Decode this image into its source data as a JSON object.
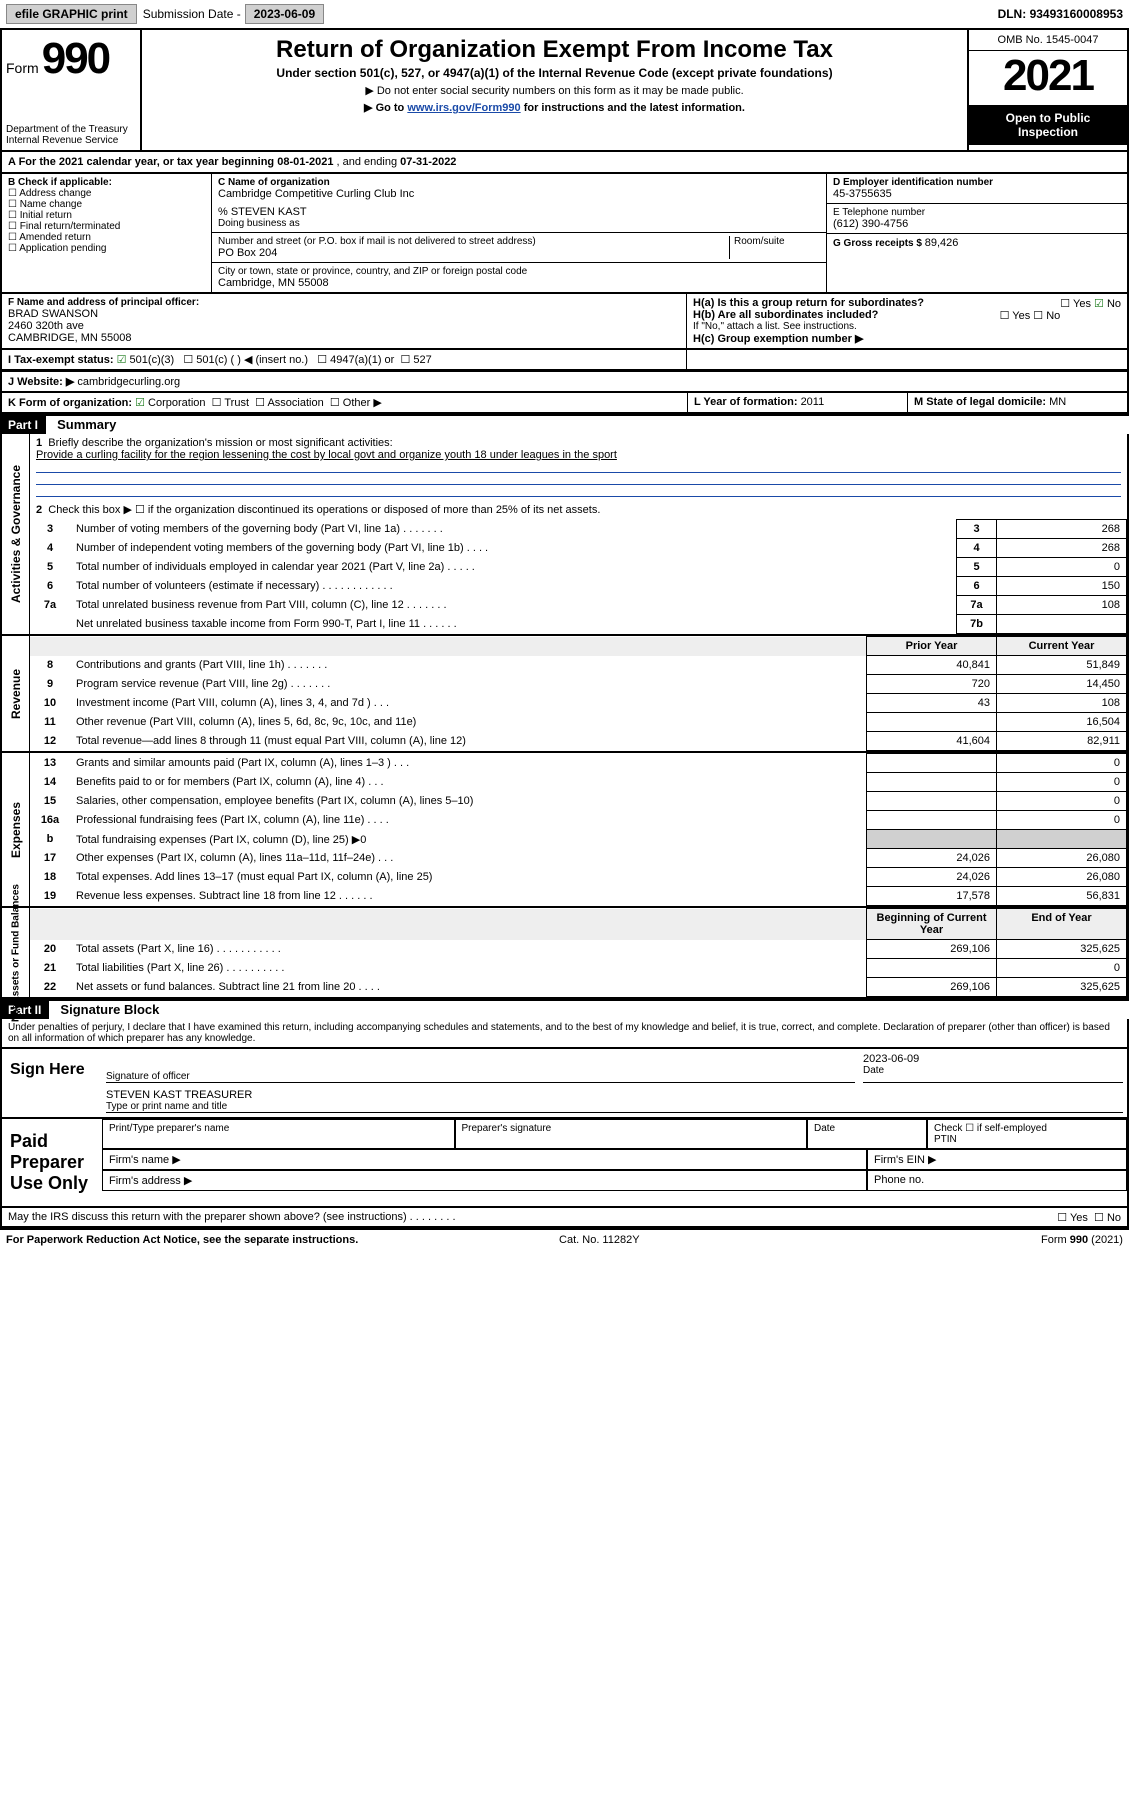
{
  "topbar": {
    "efile": "efile GRAPHIC print",
    "subdate_label": "Submission Date - ",
    "subdate": "2023-06-09",
    "dln_label": "DLN: ",
    "dln": "93493160008953"
  },
  "header": {
    "form_word": "Form",
    "form_num": "990",
    "title": "Return of Organization Exempt From Income Tax",
    "subtitle": "Under section 501(c), 527, or 4947(a)(1) of the Internal Revenue Code (except private foundations)",
    "note1": "▶ Do not enter social security numbers on this form as it may be made public.",
    "note2_pre": "▶ Go to ",
    "note2_link": "www.irs.gov/Form990",
    "note2_post": " for instructions and the latest information.",
    "dept": "Department of the Treasury",
    "irs": "Internal Revenue Service",
    "omb": "OMB No. 1545-0047",
    "year": "2021",
    "inspect1": "Open to Public",
    "inspect2": "Inspection"
  },
  "A": {
    "label": "A For the 2021 calendar year, or tax year beginning ",
    "begin": "08-01-2021",
    "mid": " , and ending ",
    "end": "07-31-2022"
  },
  "B": {
    "label": "B Check if applicable:",
    "opts": [
      "Address change",
      "Name change",
      "Initial return",
      "Final return/terminated",
      "Amended return",
      "Application pending"
    ]
  },
  "C": {
    "label": "C Name of organization",
    "name": "Cambridge Competitive Curling Club Inc",
    "care": "% STEVEN KAST",
    "dba_label": "Doing business as",
    "addr_label": "Number and street (or P.O. box if mail is not delivered to street address)",
    "room_label": "Room/suite",
    "addr": "PO Box 204",
    "city_label": "City or town, state or province, country, and ZIP or foreign postal code",
    "city": "Cambridge, MN  55008"
  },
  "D": {
    "label": "D Employer identification number",
    "ein": "45-3755635"
  },
  "E": {
    "label": "E Telephone number",
    "phone": "(612) 390-4756"
  },
  "G": {
    "label": "G Gross receipts $ ",
    "val": "89,426"
  },
  "F": {
    "label": "F Name and address of principal officer:",
    "name": "BRAD SWANSON",
    "addr1": "2460 320th ave",
    "addr2": "CAMBRIDGE, MN  55008"
  },
  "H": {
    "a": "H(a)  Is this a group return for subordinates?",
    "a_yes": "Yes",
    "a_no": "No",
    "b": "H(b)  Are all subordinates included?",
    "b_yes": "Yes",
    "b_no": "No",
    "note": "If \"No,\" attach a list. See instructions.",
    "c": "H(c)  Group exemption number ▶"
  },
  "I": {
    "label": "I    Tax-exempt status:",
    "o1": "501(c)(3)",
    "o2": "501(c) (   ) ◀ (insert no.)",
    "o3": "4947(a)(1) or",
    "o4": "527"
  },
  "J": {
    "label": "J    Website: ▶ ",
    "val": "cambridgecurling.org"
  },
  "K": {
    "label": "K Form of organization:",
    "o1": "Corporation",
    "o2": "Trust",
    "o3": "Association",
    "o4": "Other ▶"
  },
  "L": {
    "label": "L Year of formation: ",
    "val": "2011"
  },
  "M": {
    "label": "M State of legal domicile: ",
    "val": "MN"
  },
  "part1": {
    "hdr": "Part I",
    "title": "Summary",
    "q1": "Briefly describe the organization's mission or most significant activities:",
    "q1ans": "Provide a curling facility for the region lessening the cost by local govt and organize youth 18 under leagues in the sport",
    "q2": "Check this box ▶ ☐  if the organization discontinued its operations or disposed of more than 25% of its net assets.",
    "side_gov": "Activities & Governance",
    "side_rev": "Revenue",
    "side_exp": "Expenses",
    "side_net": "Net Assets or Fund Balances",
    "rows_gov": [
      {
        "n": "3",
        "t": "Number of voting members of the governing body (Part VI, line 1a)   .   .   .   .   .   .   .",
        "box": "3",
        "v": "268"
      },
      {
        "n": "4",
        "t": "Number of independent voting members of the governing body (Part VI, line 1b)   .   .   .   .",
        "box": "4",
        "v": "268"
      },
      {
        "n": "5",
        "t": "Total number of individuals employed in calendar year 2021 (Part V, line 2a)   .   .   .   .   .",
        "box": "5",
        "v": "0"
      },
      {
        "n": "6",
        "t": "Total number of volunteers (estimate if necessary)   .   .   .   .   .   .   .   .   .   .   .   .",
        "box": "6",
        "v": "150"
      },
      {
        "n": "7a",
        "t": "Total unrelated business revenue from Part VIII, column (C), line 12   .   .   .   .   .   .   .",
        "box": "7a",
        "v": "108"
      },
      {
        "n": "",
        "t": "Net unrelated business taxable income from Form 990-T, Part I, line 11   .   .   .   .   .   .",
        "box": "7b",
        "v": ""
      }
    ],
    "cols": {
      "prior": "Prior Year",
      "curr": "Current Year",
      "beg": "Beginning of Current Year",
      "end": "End of Year"
    },
    "rows_rev": [
      {
        "n": "8",
        "t": "Contributions and grants (Part VIII, line 1h)   .   .   .   .   .   .   .",
        "p": "40,841",
        "c": "51,849"
      },
      {
        "n": "9",
        "t": "Program service revenue (Part VIII, line 2g)   .   .   .   .   .   .   .",
        "p": "720",
        "c": "14,450"
      },
      {
        "n": "10",
        "t": "Investment income (Part VIII, column (A), lines 3, 4, and 7d )   .   .   .",
        "p": "43",
        "c": "108"
      },
      {
        "n": "11",
        "t": "Other revenue (Part VIII, column (A), lines 5, 6d, 8c, 9c, 10c, and 11e)",
        "p": "",
        "c": "16,504"
      },
      {
        "n": "12",
        "t": "Total revenue—add lines 8 through 11 (must equal Part VIII, column (A), line 12)",
        "p": "41,604",
        "c": "82,911"
      }
    ],
    "rows_exp": [
      {
        "n": "13",
        "t": "Grants and similar amounts paid (Part IX, column (A), lines 1–3 )   .   .   .",
        "p": "",
        "c": "0"
      },
      {
        "n": "14",
        "t": "Benefits paid to or for members (Part IX, column (A), line 4)   .   .   .",
        "p": "",
        "c": "0"
      },
      {
        "n": "15",
        "t": "Salaries, other compensation, employee benefits (Part IX, column (A), lines 5–10)",
        "p": "",
        "c": "0"
      },
      {
        "n": "16a",
        "t": "Professional fundraising fees (Part IX, column (A), line 11e)   .   .   .   .",
        "p": "",
        "c": "0"
      },
      {
        "n": "b",
        "t": "Total fundraising expenses (Part IX, column (D), line 25) ▶0",
        "p": "",
        "c": "",
        "shade": true
      },
      {
        "n": "17",
        "t": "Other expenses (Part IX, column (A), lines 11a–11d, 11f–24e)   .   .   .",
        "p": "24,026",
        "c": "26,080"
      },
      {
        "n": "18",
        "t": "Total expenses. Add lines 13–17 (must equal Part IX, column (A), line 25)",
        "p": "24,026",
        "c": "26,080"
      },
      {
        "n": "19",
        "t": "Revenue less expenses. Subtract line 18 from line 12   .   .   .   .   .   .",
        "p": "17,578",
        "c": "56,831"
      }
    ],
    "rows_net": [
      {
        "n": "20",
        "t": "Total assets (Part X, line 16)   .   .   .   .   .   .   .   .   .   .   .",
        "p": "269,106",
        "c": "325,625"
      },
      {
        "n": "21",
        "t": "Total liabilities (Part X, line 26)   .   .   .   .   .   .   .   .   .   .",
        "p": "",
        "c": "0"
      },
      {
        "n": "22",
        "t": "Net assets or fund balances. Subtract line 21 from line 20   .   .   .   .",
        "p": "269,106",
        "c": "325,625"
      }
    ]
  },
  "part2": {
    "hdr": "Part II",
    "title": "Signature Block",
    "decl": "Under penalties of perjury, I declare that I have examined this return, including accompanying schedules and statements, and to the best of my knowledge and belief, it is true, correct, and complete. Declaration of preparer (other than officer) is based on all information of which preparer has any knowledge.",
    "sign_here": "Sign Here",
    "sig_officer": "Signature of officer",
    "sig_date": "Date",
    "sig_date_val": "2023-06-09",
    "sig_name": "STEVEN KAST TREASURER",
    "sig_name_lbl": "Type or print name and title",
    "paid": "Paid Preparer Use Only",
    "pp_name": "Print/Type preparer's name",
    "pp_sig": "Preparer's signature",
    "pp_date": "Date",
    "pp_self": "Check ☐ if self-employed",
    "pp_ptin": "PTIN",
    "firm_name": "Firm's name   ▶",
    "firm_ein": "Firm's EIN ▶",
    "firm_addr": "Firm's address ▶",
    "phone": "Phone no."
  },
  "footer": {
    "discuss": "May the IRS discuss this return with the preparer shown above? (see instructions)   .   .   .   .   .   .   .   .",
    "yes": "Yes",
    "no": "No",
    "pra": "For Paperwork Reduction Act Notice, see the separate instructions.",
    "cat": "Cat. No. 11282Y",
    "form": "Form 990 (2021)"
  }
}
